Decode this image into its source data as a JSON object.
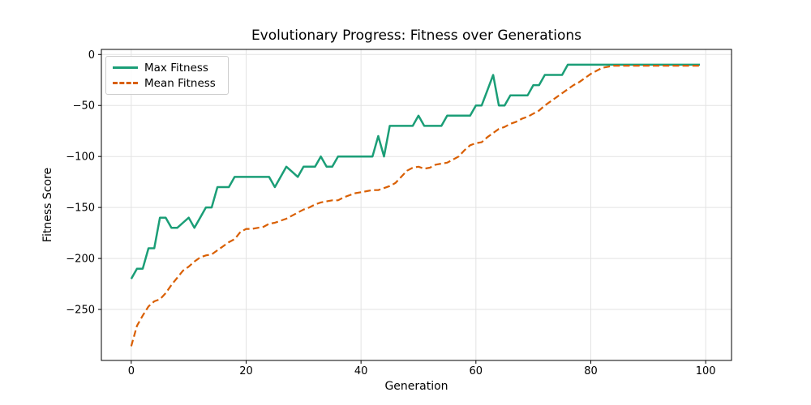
{
  "figure": {
    "title": "Evolutionary Progress: Fitness over Generations",
    "xlabel": "Generation",
    "ylabel": "Fitness Score"
  },
  "legend": {
    "position": "upper left",
    "entries": [
      {
        "label": "Max Fitness",
        "color": "#1b9e77",
        "style": "solid"
      },
      {
        "label": "Mean Fitness",
        "color": "#d95f02",
        "style": "dashed"
      }
    ]
  },
  "chart_data": {
    "type": "line",
    "title": "Evolutionary Progress: Fitness over Generations",
    "xlabel": "Generation",
    "ylabel": "Fitness Score",
    "xlim": [
      -5.2,
      104.5
    ],
    "ylim": [
      -300,
      5
    ],
    "grid": true,
    "grid_color": "#e3e3e3",
    "spine_color": "#000000",
    "legend_position": "upper left",
    "xticks": {
      "values": [
        0,
        20,
        40,
        60,
        80,
        100
      ],
      "labels": [
        "0",
        "20",
        "40",
        "60",
        "80",
        "100"
      ]
    },
    "yticks": {
      "values": [
        0,
        -50,
        -100,
        -150,
        -200,
        -250
      ],
      "labels": [
        "0",
        "−50",
        "−100",
        "−150",
        "−200",
        "−250"
      ]
    },
    "x": [
      0,
      1,
      2,
      3,
      4,
      5,
      6,
      7,
      8,
      9,
      10,
      11,
      12,
      13,
      14,
      15,
      16,
      17,
      18,
      19,
      20,
      21,
      22,
      23,
      24,
      25,
      26,
      27,
      28,
      29,
      30,
      31,
      32,
      33,
      34,
      35,
      36,
      37,
      38,
      39,
      40,
      41,
      42,
      43,
      44,
      45,
      46,
      47,
      48,
      49,
      50,
      51,
      52,
      53,
      54,
      55,
      56,
      57,
      58,
      59,
      60,
      61,
      62,
      63,
      64,
      65,
      66,
      67,
      68,
      69,
      70,
      71,
      72,
      73,
      74,
      75,
      76,
      77,
      78,
      79,
      80,
      81,
      82,
      83,
      84,
      85,
      86,
      87,
      88,
      89,
      90,
      91,
      92,
      93,
      94,
      95,
      96,
      97,
      98,
      99
    ],
    "series": [
      {
        "name": "Max Fitness",
        "color": "#1b9e77",
        "line_style": "solid",
        "line_width": 2.5,
        "values": [
          -220,
          -210,
          -210,
          -190,
          -190,
          -160,
          -160,
          -170,
          -170,
          -165,
          -160,
          -170,
          -160,
          -150,
          -150,
          -130,
          -130,
          -130,
          -120,
          -120,
          -120,
          -120,
          -120,
          -120,
          -120,
          -130,
          -120,
          -110,
          -115,
          -120,
          -110,
          -110,
          -110,
          -100,
          -110,
          -110,
          -100,
          -100,
          -100,
          -100,
          -100,
          -100,
          -100,
          -80,
          -100,
          -70,
          -70,
          -70,
          -70,
          -70,
          -60,
          -70,
          -70,
          -70,
          -70,
          -60,
          -60,
          -60,
          -60,
          -60,
          -50,
          -50,
          -35,
          -20,
          -50,
          -50,
          -40,
          -40,
          -40,
          -40,
          -30,
          -30,
          -20,
          -20,
          -20,
          -20,
          -10,
          -10,
          -10,
          -10,
          -10,
          -10,
          -10,
          -10,
          -10,
          -10,
          -10,
          -10,
          -10,
          -10,
          -10,
          -10,
          -10,
          -10,
          -10,
          -10,
          -10,
          -10,
          -10,
          -10
        ]
      },
      {
        "name": "Mean Fitness",
        "color": "#d95f02",
        "line_style": "dashed",
        "line_width": 2.2,
        "values": [
          -286,
          -266,
          -256,
          -247,
          -242,
          -240,
          -234,
          -226,
          -219,
          -212,
          -208,
          -203,
          -199,
          -197,
          -196,
          -192,
          -188,
          -184,
          -181,
          -174,
          -171,
          -171,
          -170,
          -169,
          -166,
          -165,
          -163,
          -161,
          -158,
          -155,
          -152,
          -150,
          -147,
          -145,
          -144,
          -143,
          -143,
          -140,
          -138,
          -136,
          -135,
          -134,
          -133,
          -133,
          -131,
          -129,
          -126,
          -120,
          -114,
          -111,
          -110,
          -112,
          -111,
          -108,
          -107,
          -106,
          -103,
          -100,
          -94,
          -89,
          -87,
          -86,
          -81,
          -77,
          -73,
          -71,
          -68,
          -66,
          -63,
          -61,
          -58,
          -55,
          -50,
          -46,
          -42,
          -38,
          -34,
          -30,
          -27,
          -23,
          -19,
          -16,
          -13,
          -12,
          -11,
          -11,
          -11,
          -11,
          -11,
          -11,
          -11,
          -11,
          -11,
          -11,
          -11,
          -11,
          -11,
          -11,
          -11,
          -11
        ]
      }
    ]
  }
}
